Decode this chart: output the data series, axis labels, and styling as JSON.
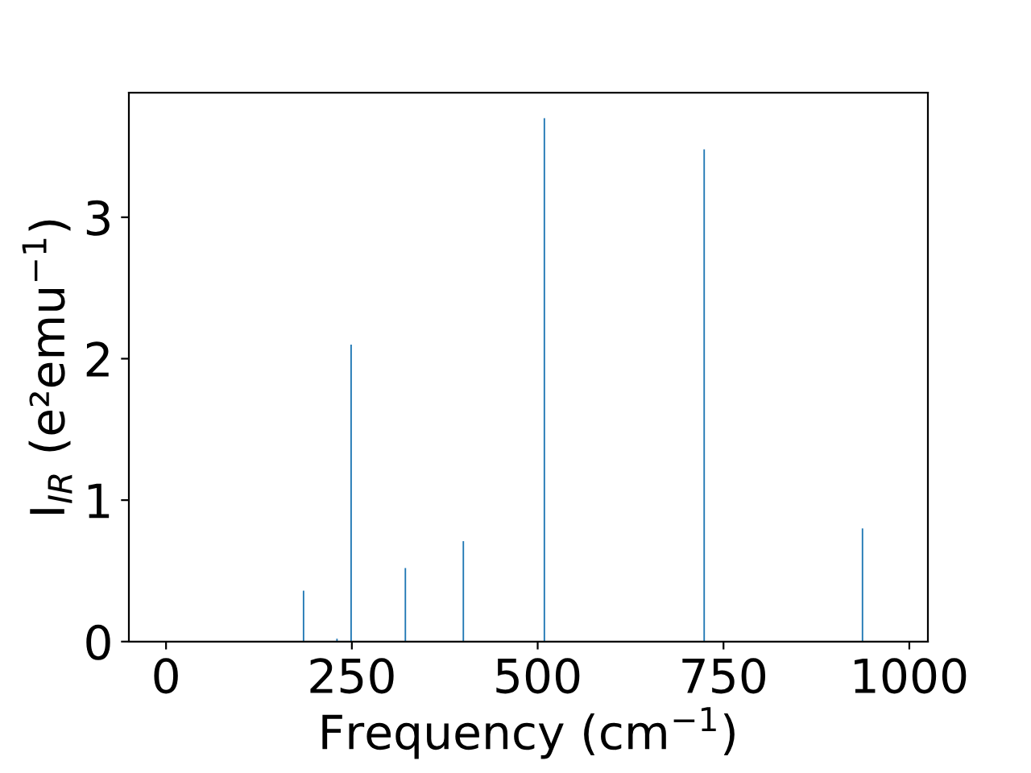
{
  "chart_data": {
    "type": "bar",
    "xlabel": "Frequency (cm$^{−1}$)",
    "ylabel": "I$_{IR}$ (e²emu$^{−1}$)",
    "x": [
      185,
      230,
      249,
      322,
      400,
      509,
      724,
      937
    ],
    "series": [
      {
        "color": "#1f77b4",
        "values": [
          0.36,
          0.02,
          2.1,
          0.52,
          0.71,
          3.7,
          3.48,
          0.8
        ]
      }
    ],
    "xlim": [
      -50,
      1025
    ],
    "xticks": [
      0,
      250,
      500,
      750,
      1000
    ],
    "ylim": [
      0,
      3.88
    ],
    "yticks": [
      0,
      1,
      2,
      3
    ],
    "grid": false,
    "legend": false
  }
}
